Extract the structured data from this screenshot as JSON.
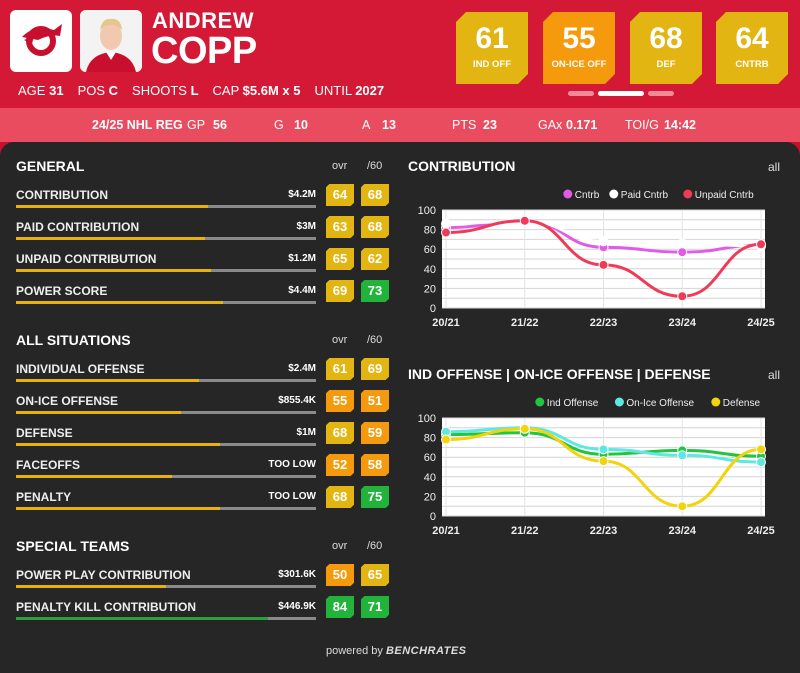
{
  "player": {
    "first_name": "ANDREW",
    "last_name": "COPP",
    "age_label": "AGE",
    "age": "31",
    "pos_label": "POS",
    "pos": "C",
    "shoots_label": "SHOOTS",
    "shoots": "L",
    "cap_label": "CAP",
    "cap": "$5.6M x 5",
    "until_label": "UNTIL",
    "until": "2027",
    "team_logo_icon": "red-wings-logo-icon",
    "photo_icon": "player-headshot"
  },
  "badges": [
    {
      "value": "61",
      "label": "IND OFF",
      "color": "#e3b512"
    },
    {
      "value": "55",
      "label": "ON-ICE OFF",
      "color": "#f59a0c"
    },
    {
      "value": "68",
      "label": "DEF",
      "color": "#e3b512"
    },
    {
      "value": "64",
      "label": "CNTRB",
      "color": "#e3b512"
    }
  ],
  "stats_bar": {
    "season": "24/25 NHL REG",
    "gp_label": "GP",
    "gp": "56",
    "g_label": "G",
    "g": "10",
    "a_label": "A",
    "a": "13",
    "pts_label": "PTS",
    "pts": "23",
    "gax_label": "GAx",
    "gax": "0.171",
    "toi_label": "TOI/G",
    "toi": "14:42"
  },
  "colors": {
    "gold": "#e3b512",
    "orange": "#f59a0c",
    "green": "#22b43a",
    "bar_gold": "#e8b20e",
    "bar_green": "#2e9e3a"
  },
  "sections": [
    {
      "title": "GENERAL",
      "ovr_label": "ovr",
      "per60_label": "/60",
      "rows": [
        {
          "label": "CONTRIBUTION",
          "value": "$4.2M",
          "ovr": "64",
          "p60": "68",
          "fill": 0.64
        },
        {
          "label": "PAID CONTRIBUTION",
          "value": "$3M",
          "ovr": "63",
          "p60": "68",
          "fill": 0.63
        },
        {
          "label": "UNPAID CONTRIBUTION",
          "value": "$1.2M",
          "ovr": "65",
          "p60": "62",
          "fill": 0.65
        },
        {
          "label": "POWER SCORE",
          "value": "$4.4M",
          "ovr": "69",
          "p60": "73",
          "fill": 0.69
        }
      ]
    },
    {
      "title": "ALL SITUATIONS",
      "ovr_label": "ovr",
      "per60_label": "/60",
      "rows": [
        {
          "label": "INDIVIDUAL OFFENSE",
          "value": "$2.4M",
          "ovr": "61",
          "p60": "69",
          "fill": 0.61
        },
        {
          "label": "ON-ICE OFFENSE",
          "value": "$855.4K",
          "ovr": "55",
          "p60": "51",
          "fill": 0.55
        },
        {
          "label": "DEFENSE",
          "value": "$1M",
          "ovr": "68",
          "p60": "59",
          "fill": 0.68
        },
        {
          "label": "FACEOFFS",
          "value": "TOO LOW",
          "ovr": "52",
          "p60": "58",
          "fill": 0.52
        },
        {
          "label": "PENALTY",
          "value": "TOO LOW",
          "ovr": "68",
          "p60": "75",
          "fill": 0.68
        }
      ]
    },
    {
      "title": "SPECIAL TEAMS",
      "ovr_label": "ovr",
      "per60_label": "/60",
      "rows": [
        {
          "label": "POWER PLAY CONTRIBUTION",
          "value": "$301.6K",
          "ovr": "50",
          "p60": "65",
          "fill": 0.5
        },
        {
          "label": "PENALTY KILL CONTRIBUTION",
          "value": "$446.9K",
          "ovr": "84",
          "p60": "71",
          "fill": 0.84
        }
      ]
    }
  ],
  "chart_data": [
    {
      "type": "line",
      "title": "CONTRIBUTION",
      "all_label": "all",
      "x": [
        "20/21",
        "21/22",
        "22/23",
        "23/24",
        "24/25"
      ],
      "ylim": [
        0,
        100
      ],
      "yticks": [
        0,
        10,
        20,
        30,
        40,
        50,
        60,
        70,
        80,
        90,
        100
      ],
      "legend_position": "top-right",
      "series": [
        {
          "name": "Cntrb",
          "color": "#e25be8",
          "values": [
            82,
            89,
            62,
            57,
            64
          ]
        },
        {
          "name": "Paid Cntrb",
          "color": "#ffffff",
          "values": [
            86,
            89,
            68,
            66,
            63
          ]
        },
        {
          "name": "Unpaid Cntrb",
          "color": "#ef3b58",
          "values": [
            77,
            89,
            44,
            12,
            65
          ]
        }
      ]
    },
    {
      "type": "line",
      "title": "IND OFFENSE | ON-ICE OFFENSE | DEFENSE",
      "all_label": "all",
      "x": [
        "20/21",
        "21/22",
        "22/23",
        "23/24",
        "24/25"
      ],
      "ylim": [
        0,
        100
      ],
      "yticks": [
        0,
        10,
        20,
        30,
        40,
        50,
        60,
        70,
        80,
        90,
        100
      ],
      "legend_position": "top-right",
      "series": [
        {
          "name": "Ind Offense",
          "color": "#22c440",
          "values": [
            83,
            85,
            63,
            67,
            61
          ]
        },
        {
          "name": "On-Ice Offense",
          "color": "#5ee8e0",
          "values": [
            86,
            90,
            68,
            62,
            55
          ]
        },
        {
          "name": "Defense",
          "color": "#f2d40e",
          "values": [
            78,
            89,
            56,
            10,
            68
          ]
        }
      ]
    }
  ],
  "footer": {
    "powered_by": "powered by",
    "brand": "BENCHRATES"
  }
}
